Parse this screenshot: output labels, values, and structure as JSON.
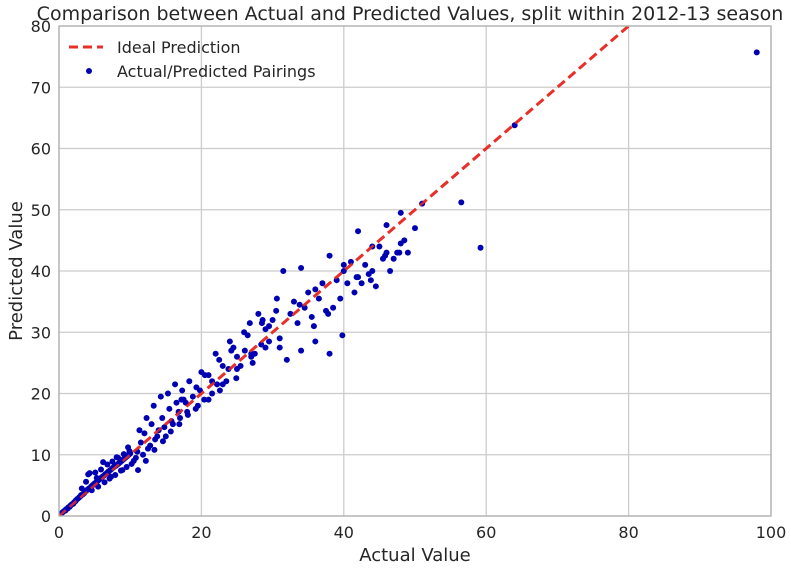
{
  "chart_data": {
    "type": "scatter",
    "title": "Comparison between Actual and Predicted Values, split within 2012-13 season",
    "xlabel": "Actual Value",
    "ylabel": "Predicted Value",
    "xlim": [
      0,
      100
    ],
    "ylim": [
      0,
      80
    ],
    "xticks": [
      0,
      20,
      40,
      60,
      80,
      100
    ],
    "yticks": [
      0,
      10,
      20,
      30,
      40,
      50,
      60,
      70,
      80
    ],
    "grid": true,
    "legend_position": "top-left",
    "colors": {
      "scatter": "#0000b3",
      "ideal": "#e8302a",
      "grid": "#cccccc",
      "frame": "#b0b0b0"
    },
    "series": [
      {
        "name": "Ideal Prediction",
        "kind": "line",
        "style": "dashed",
        "x": [
          0,
          100
        ],
        "y": [
          0,
          100
        ]
      },
      {
        "name": "Actual/Predicted Pairings",
        "kind": "scatter",
        "x": [
          0.3,
          0.5,
          0.7,
          0.9,
          1.0,
          1.2,
          1.3,
          1.5,
          1.6,
          1.8,
          2.0,
          2.1,
          2.3,
          2.4,
          2.6,
          2.8,
          3.0,
          3.1,
          3.3,
          3.5,
          3.6,
          3.8,
          4.0,
          4.2,
          4.4,
          4.5,
          4.7,
          4.9,
          5.0,
          5.2,
          5.4,
          5.6,
          5.8,
          6.0,
          6.1,
          6.3,
          6.5,
          6.7,
          6.9,
          7.0,
          7.2,
          7.4,
          7.6,
          7.8,
          8.0,
          8.2,
          8.4,
          8.6,
          8.8,
          9.0,
          9.2,
          9.4,
          9.6,
          9.8,
          10.0,
          3.2,
          3.8,
          4.1,
          4.6,
          5.1,
          5.5,
          5.9,
          6.4,
          6.8,
          7.1,
          7.5,
          7.9,
          8.3,
          8.7,
          9.1,
          9.5,
          9.9,
          4.3,
          5.3,
          6.2,
          7.3,
          8.1,
          8.9,
          9.7,
          10.5,
          11.0,
          11.5,
          12.0,
          12.5,
          13.0,
          13.5,
          14.0,
          14.5,
          15.0,
          15.5,
          16.0,
          16.5,
          17.0,
          17.5,
          18.0,
          10.2,
          10.8,
          11.3,
          11.8,
          12.3,
          12.8,
          13.3,
          13.8,
          14.3,
          14.8,
          15.3,
          15.8,
          16.3,
          16.8,
          17.3,
          17.8,
          18.3,
          18.8,
          19.3,
          11.1,
          12.2,
          13.4,
          14.6,
          15.7,
          16.9,
          18.1,
          19.2,
          20.4,
          21.5,
          22.6,
          23.8,
          24.9,
          26.1,
          27.2,
          28.4,
          29.5,
          20.0,
          21.0,
          22.0,
          23.0,
          24.0,
          25.0,
          26.0,
          27.0,
          28.0,
          29.0,
          30.0,
          31.0,
          19.5,
          20.5,
          21.5,
          22.5,
          23.5,
          24.5,
          25.5,
          26.5,
          27.5,
          28.5,
          29.5,
          30.5,
          32.0,
          33.0,
          34.0,
          35.0,
          36.0,
          37.0,
          38.0,
          39.0,
          40.0,
          41.0,
          42.0,
          43.0,
          44.0,
          45.0,
          46.0,
          47.0,
          48.0,
          49.0,
          50.0,
          51.0,
          56.5,
          59.2,
          64.0,
          98.0,
          32.5,
          33.5,
          34.5,
          35.5,
          36.5,
          37.5,
          38.5,
          39.5,
          40.5,
          41.5,
          42.5,
          43.5,
          44.5,
          45.5,
          46.5,
          47.5,
          48.5,
          34.0,
          36.0,
          38.0,
          40.0,
          42.0,
          44.0,
          46.0,
          48.0,
          31.5,
          33.8,
          35.8,
          37.8,
          39.8,
          41.8,
          43.8,
          45.8,
          47.8,
          29.0,
          31.0,
          27.0,
          25.0,
          23.0,
          21.0,
          24.2,
          26.8,
          28.6,
          30.6,
          17.2,
          19.8,
          22.2
        ],
        "y": [
          0.4,
          0.6,
          0.8,
          0.9,
          1.1,
          1.2,
          1.4,
          1.5,
          1.7,
          1.9,
          2.0,
          2.2,
          2.4,
          2.6,
          2.8,
          3.0,
          3.2,
          3.4,
          3.5,
          3.7,
          3.9,
          4.1,
          4.3,
          4.5,
          4.6,
          4.8,
          5.0,
          5.2,
          5.3,
          5.5,
          5.7,
          5.9,
          6.1,
          6.3,
          6.4,
          6.6,
          6.8,
          7.0,
          7.2,
          7.3,
          7.5,
          7.7,
          7.9,
          8.1,
          8.2,
          8.4,
          8.6,
          8.8,
          9.0,
          9.2,
          9.4,
          9.6,
          9.8,
          10.0,
          10.2,
          4.5,
          5.6,
          6.8,
          4.2,
          7.1,
          4.8,
          7.6,
          5.5,
          8.4,
          6.1,
          8.9,
          6.7,
          9.5,
          7.4,
          10.1,
          8.0,
          10.6,
          7.0,
          6.2,
          8.8,
          6.4,
          9.6,
          7.5,
          11.2,
          9.0,
          10.5,
          12.0,
          13.5,
          11.0,
          15.0,
          12.5,
          14.0,
          16.0,
          13.0,
          17.5,
          15.0,
          18.5,
          16.0,
          19.0,
          17.0,
          8.5,
          9.5,
          14.0,
          10.0,
          16.0,
          11.5,
          18.0,
          13.0,
          19.5,
          14.5,
          20.0,
          15.5,
          21.5,
          17.0,
          20.5,
          18.5,
          22.0,
          19.5,
          21.0,
          7.5,
          9.0,
          10.8,
          12.2,
          13.8,
          15.0,
          16.5,
          17.5,
          19.0,
          22.0,
          20.5,
          24.0,
          22.5,
          27.0,
          25.0,
          28.0,
          31.0,
          23.5,
          19.0,
          26.5,
          21.5,
          28.5,
          24.0,
          30.0,
          26.0,
          33.0,
          27.5,
          32.0,
          29.0,
          18.0,
          23.0,
          20.0,
          25.5,
          22.0,
          27.5,
          24.5,
          29.5,
          26.5,
          31.5,
          28.5,
          33.5,
          25.5,
          35.0,
          27.0,
          36.5,
          28.5,
          38.0,
          26.5,
          38.5,
          40.0,
          41.5,
          39.0,
          41.0,
          40.0,
          44.0,
          43.0,
          42.0,
          44.5,
          43.0,
          47.0,
          51.0,
          51.2,
          43.8,
          63.8,
          75.7,
          33.0,
          31.5,
          34.0,
          32.5,
          35.5,
          33.5,
          34.0,
          35.5,
          38.0,
          36.5,
          38.0,
          39.5,
          37.5,
          42.0,
          40.0,
          43.0,
          45.0,
          40.5,
          37.0,
          42.5,
          41.0,
          46.5,
          44.0,
          47.5,
          49.5,
          40.0,
          34.5,
          31.0,
          33.0,
          29.5,
          39.0,
          38.5,
          42.5,
          43.0,
          30.5,
          27.5,
          26.5,
          26.0,
          24.5,
          23.0,
          27.0,
          31.5,
          32.0,
          35.5,
          19.0,
          20.5,
          21.5
        ]
      }
    ]
  }
}
